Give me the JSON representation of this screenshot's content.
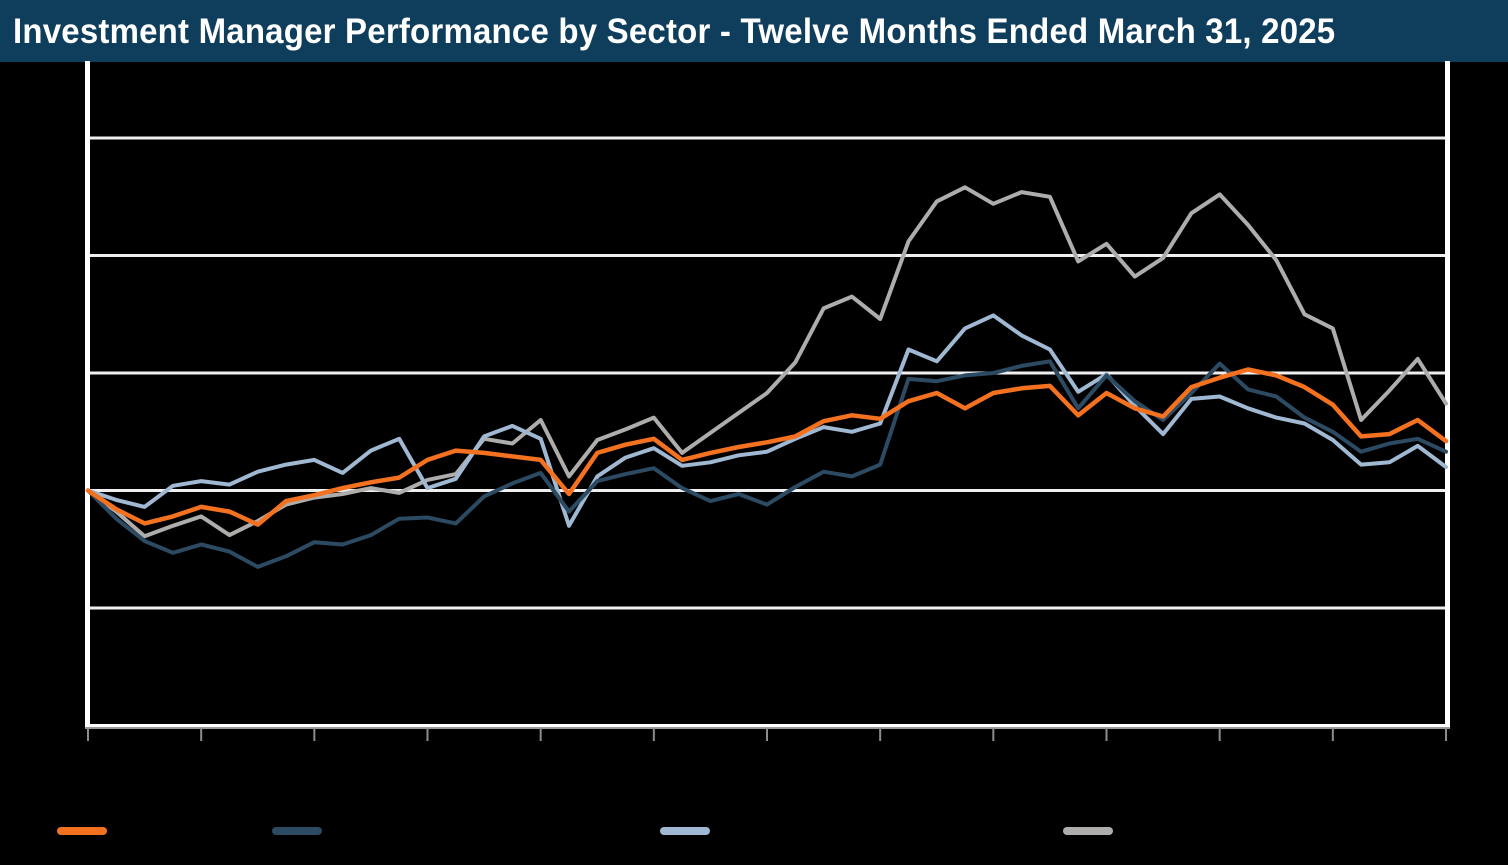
{
  "title": "Investment Manager Performance by Sector - Twelve Months Ended March 31, 2025",
  "title_bar_color": "#0F3E5C",
  "background_color": "#000000",
  "axis_colors": {
    "plot_border": "#FFFFFF",
    "gridline": "#EFEFEF",
    "x_axis_line": "#9A9A9A",
    "tick": "#8C8C8C"
  },
  "chart_data": {
    "type": "line",
    "title": "Investment Manager Performance by Sector - Twelve Months Ended March 31, 2025",
    "x_axis": {
      "tick_count": 13,
      "tick_labels_visible": false,
      "implied_span": "monthly ticks, Apr 2024 through Apr 2025"
    },
    "y_axis": {
      "unit": "percent",
      "gridline_values_pct": [
        30,
        20,
        10,
        0,
        -10,
        -20
      ],
      "tick_labels_visible": false,
      "ylim": [
        -20,
        36.5
      ],
      "grid": true
    },
    "legend_position": "bottom",
    "legend_labels_visible": false,
    "sample_step": "weekly (49 points across 12 months)",
    "series": [
      {
        "name": "series-orange",
        "color": "#F4711F",
        "values_pct": [
          0.0,
          -1.6,
          -2.8,
          -2.2,
          -1.4,
          -1.8,
          -2.9,
          -0.9,
          -0.4,
          0.2,
          0.7,
          1.1,
          2.6,
          3.4,
          3.2,
          2.9,
          2.6,
          -0.3,
          3.2,
          3.9,
          4.4,
          2.6,
          3.2,
          3.7,
          4.1,
          4.6,
          5.9,
          6.4,
          6.1,
          7.6,
          8.3,
          7.0,
          8.3,
          8.7,
          8.9,
          6.4,
          8.3,
          7.0,
          6.3,
          8.8,
          9.6,
          10.3,
          9.8,
          8.8,
          7.3,
          4.6,
          4.8,
          6.0,
          4.2
        ]
      },
      {
        "name": "series-navy",
        "color": "#2C4A62",
        "values_pct": [
          0.0,
          -2.4,
          -4.3,
          -5.3,
          -4.6,
          -5.2,
          -6.5,
          -5.6,
          -4.4,
          -4.6,
          -3.8,
          -2.4,
          -2.3,
          -2.8,
          -0.5,
          0.6,
          1.5,
          -1.8,
          0.8,
          1.4,
          1.9,
          0.2,
          -0.9,
          -0.3,
          -1.2,
          0.3,
          1.6,
          1.2,
          2.2,
          9.5,
          9.3,
          9.8,
          10.0,
          10.6,
          11.0,
          7.0,
          9.8,
          7.6,
          6.0,
          8.3,
          10.8,
          8.6,
          8.0,
          6.2,
          5.0,
          3.3,
          4.0,
          4.4,
          3.3
        ]
      },
      {
        "name": "series-lightblue",
        "color": "#A0B8D2",
        "values_pct": [
          0.0,
          -0.8,
          -1.4,
          0.4,
          0.8,
          0.5,
          1.6,
          2.2,
          2.6,
          1.5,
          3.4,
          4.4,
          0.2,
          1.0,
          4.6,
          5.5,
          4.4,
          -3.0,
          1.2,
          2.8,
          3.6,
          2.1,
          2.4,
          3.0,
          3.3,
          4.4,
          5.4,
          5.0,
          5.7,
          12.0,
          11.0,
          13.8,
          14.9,
          13.2,
          12.0,
          8.4,
          9.9,
          7.2,
          4.8,
          7.8,
          8.0,
          7.0,
          6.2,
          5.7,
          4.3,
          2.2,
          2.4,
          3.8,
          2.0
        ]
      },
      {
        "name": "series-gray",
        "color": "#AEADAB",
        "values_pct": [
          0.0,
          -1.8,
          -3.9,
          -3.0,
          -2.2,
          -3.8,
          -2.6,
          -1.2,
          -0.6,
          -0.3,
          0.2,
          -0.2,
          0.9,
          1.4,
          4.4,
          4.0,
          6.0,
          1.2,
          4.3,
          5.2,
          6.2,
          3.2,
          4.9,
          6.6,
          8.3,
          10.9,
          15.5,
          16.5,
          14.6,
          21.2,
          24.6,
          25.8,
          24.4,
          25.4,
          25.0,
          19.5,
          21.0,
          18.2,
          19.8,
          23.6,
          25.2,
          22.6,
          19.6,
          15.0,
          13.8,
          6.0,
          8.5,
          11.2,
          7.4
        ]
      }
    ]
  },
  "legend": {
    "items": [
      {
        "name": "legend-swatch-orange",
        "color": "#F4711F"
      },
      {
        "name": "legend-swatch-navy",
        "color": "#2C4A62"
      },
      {
        "name": "legend-swatch-lightblue",
        "color": "#A0B8D2"
      },
      {
        "name": "legend-swatch-gray",
        "color": "#AEADAB"
      }
    ]
  }
}
